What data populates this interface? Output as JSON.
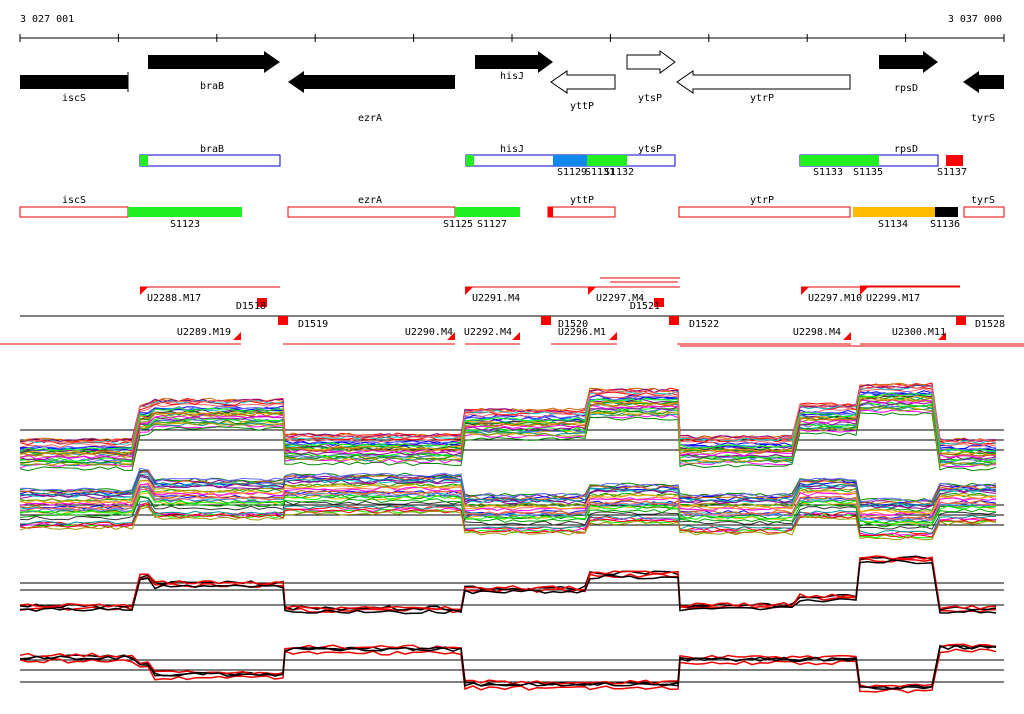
{
  "ruler": {
    "start": "3 027 001",
    "end": "3 037 000"
  },
  "genes": [
    "iscS",
    "braB",
    "ezrA",
    "hisJ",
    "yttP",
    "ytsP",
    "ytrP",
    "rpsD",
    "tyrS"
  ],
  "operon_row_1": {
    "genes": [
      "braB",
      "hisJ",
      "ytsP",
      "rpsD"
    ],
    "segments": [
      "S1129",
      "S1131",
      "S1132",
      "S1133",
      "S1135",
      "S1137"
    ]
  },
  "operon_row_2": {
    "genes": [
      "iscS",
      "ezrA",
      "yttP",
      "ytrP",
      "tyrS"
    ],
    "segments": [
      "S1123",
      "S1125",
      "S1127",
      "S1134",
      "S1136"
    ]
  },
  "transcription_units": [
    "U2288.M17",
    "D1518",
    "D1519",
    "U2289.M19",
    "U2291.M4",
    "U2290.M4",
    "U2292.M4",
    "D1520",
    "U2296.M1",
    "U2297.M4",
    "D1521",
    "D1522",
    "U2297.M10",
    "U2298.M4",
    "U2299.M17",
    "U2300.M11",
    "D1528"
  ]
}
